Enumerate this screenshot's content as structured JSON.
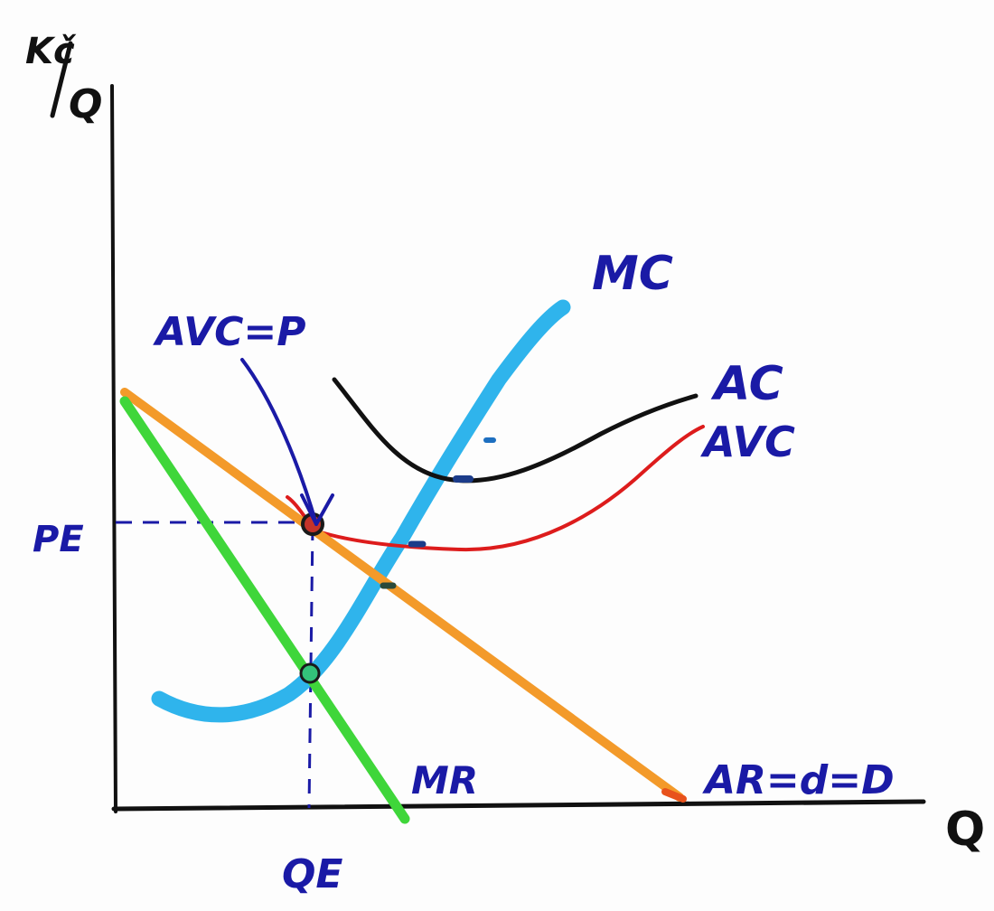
{
  "axes": {
    "y_label_num": "Kč",
    "y_label_den": "Q",
    "x_label": "Q"
  },
  "curves": {
    "mc": {
      "label": "MC",
      "color": "#2fb4ec"
    },
    "ac": {
      "label": "AC",
      "color": "#111111"
    },
    "avc": {
      "label": "AVC",
      "color": "#dd1c1c"
    },
    "demand": {
      "label": "AR=d=D",
      "color": "#f39a2a"
    },
    "mr": {
      "label": "MR",
      "color": "#3fd63a"
    }
  },
  "annotations": {
    "equilibrium_note": "AVC=P",
    "price_label": "PE",
    "quantity_label": "QE"
  },
  "guide_color": "#1a1aa6"
}
